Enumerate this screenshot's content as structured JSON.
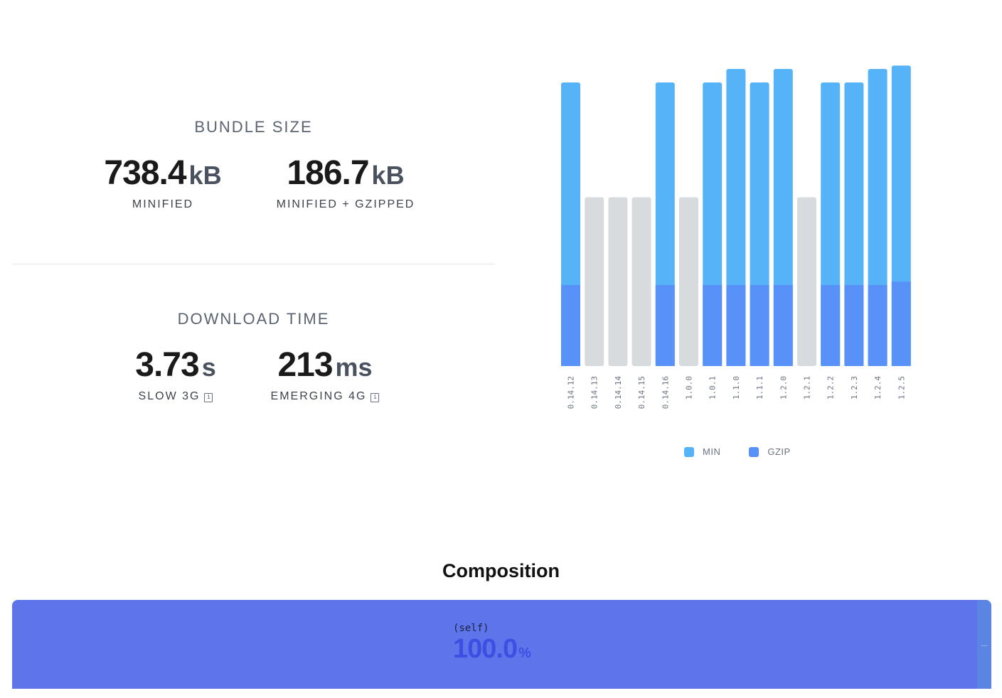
{
  "bundle_size": {
    "title": "BUNDLE SIZE",
    "minified": {
      "value": "738.4",
      "unit": "kB",
      "label": "MINIFIED"
    },
    "gzipped": {
      "value": "186.7",
      "unit": "kB",
      "label": "MINIFIED + GZIPPED"
    }
  },
  "download_time": {
    "title": "DOWNLOAD TIME",
    "slow3g": {
      "value": "3.73",
      "unit": "s",
      "label": "SLOW 3G",
      "info_icon": "info-icon"
    },
    "emerging4g": {
      "value": "213",
      "unit": "ms",
      "label": "EMERGING 4G",
      "info_icon": "info-icon"
    }
  },
  "chart_data": {
    "type": "bar",
    "categories": [
      "0.14.12",
      "0.14.13",
      "0.14.14",
      "0.14.15",
      "0.14.16",
      "1.0.0",
      "1.0.1",
      "1.1.0",
      "1.1.1",
      "1.2.0",
      "1.2.1",
      "1.2.2",
      "1.2.3",
      "1.2.4",
      "1.2.5"
    ],
    "series": [
      {
        "name": "MIN",
        "color": "#56b3f7",
        "values": [
          0.84,
          0.5,
          0.5,
          0.5,
          0.84,
          0.5,
          0.84,
          0.88,
          0.84,
          0.88,
          0.5,
          0.84,
          0.84,
          0.88,
          0.89
        ]
      },
      {
        "name": "GZIP",
        "color": "#5891f8",
        "values": [
          0.24,
          null,
          null,
          null,
          0.24,
          null,
          0.24,
          0.24,
          0.24,
          0.24,
          null,
          0.24,
          0.24,
          0.24,
          0.25
        ]
      }
    ],
    "missing_color": "#d8dbde",
    "grid": false,
    "legend": "bottom"
  },
  "composition": {
    "title": "Composition",
    "item_name": "(self)",
    "percent": "100.0",
    "percent_symbol": "%",
    "more": "...",
    "bar_color": "#5e74ea"
  }
}
